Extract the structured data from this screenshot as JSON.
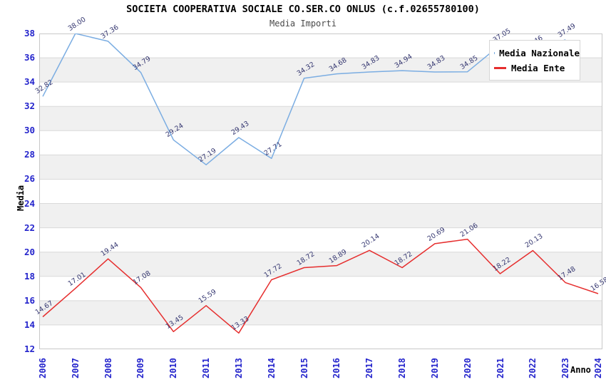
{
  "title": "SOCIETA COOPERATIVA SOCIALE CO.SER.CO ONLUS (c.f.02655780100)",
  "subtitle": "Media Importi",
  "chart_data": {
    "type": "line",
    "title": "SOCIETA COOPERATIVA SOCIALE CO.SER.CO ONLUS (c.f.02655780100)",
    "subtitle": "Media Importi",
    "xlabel": "Anno",
    "ylabel": "Media",
    "ylim": [
      12,
      38
    ],
    "y_ticks": [
      12,
      14,
      16,
      18,
      20,
      22,
      24,
      26,
      28,
      30,
      32,
      34,
      36,
      38
    ],
    "grid": "horizontal gridlines every 2 with alternating gray bands",
    "legend_position": "top-right",
    "categories": [
      "2006",
      "2007",
      "2008",
      "2009",
      "2010",
      "2011",
      "2013",
      "2014",
      "2015",
      "2016",
      "2017",
      "2018",
      "2019",
      "2020",
      "2021",
      "2022",
      "2023",
      "2024"
    ],
    "series": [
      {
        "name": "Media Nazionale",
        "color": "#7badе2",
        "color_hex": "#7bade2",
        "values": [
          32.82,
          38.0,
          37.36,
          34.79,
          29.24,
          27.19,
          29.43,
          27.71,
          34.32,
          34.68,
          34.83,
          34.94,
          34.83,
          34.85,
          37.05,
          36.46,
          37.49,
          null
        ],
        "labels": [
          "32.82",
          "38.00",
          "37.36",
          "34.79",
          "29.24",
          "27.19",
          "29.43",
          "27.71",
          "34.32",
          "34.68",
          "34.83",
          "34.94",
          "34.83",
          "34.85",
          "37.05",
          "36.46",
          "37.49",
          ""
        ]
      },
      {
        "name": "Media Ente",
        "color": "#e62e2e",
        "color_hex": "#e62e2e",
        "values": [
          14.67,
          17.01,
          19.44,
          17.08,
          13.45,
          15.59,
          13.33,
          17.72,
          18.72,
          18.89,
          20.14,
          18.72,
          20.69,
          21.06,
          18.22,
          20.13,
          17.48,
          16.58
        ],
        "labels": [
          "14.67",
          "17.01",
          "19.44",
          "17.08",
          "13.45",
          "15.59",
          "13.33",
          "17.72",
          "18.72",
          "18.89",
          "20.14",
          "18.72",
          "20.69",
          "21.06",
          "18.22",
          "20.13",
          "17.48",
          "16.58"
        ]
      }
    ]
  },
  "colors": {
    "nazionale_line": "#7bade2",
    "ente_line": "#e62e2e",
    "tick_label": "#2424cc",
    "data_label": "#343670",
    "band_gray": "#f0f0f0",
    "gridline": "#d9d9d9",
    "plot_border": "#c8c8c8"
  }
}
